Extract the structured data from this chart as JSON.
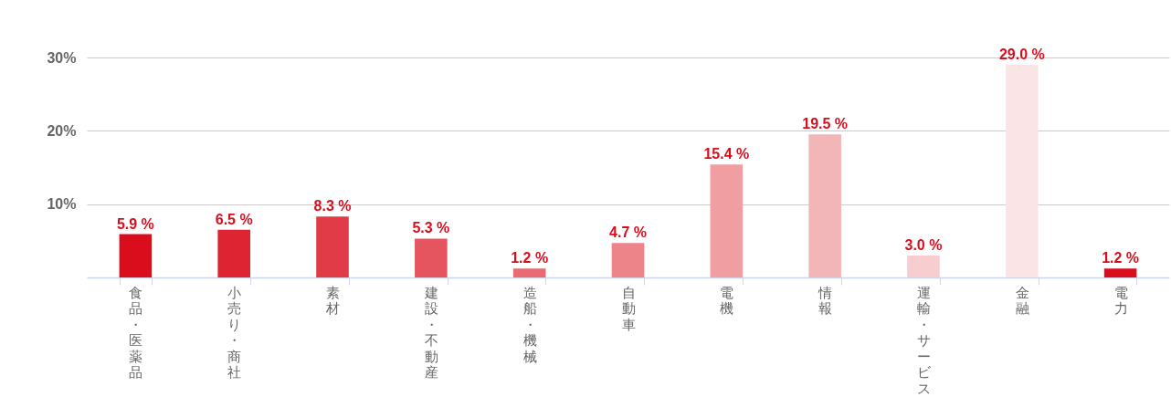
{
  "chart_data": {
    "type": "bar",
    "categories": [
      "食品・医薬品",
      "小売り・商社",
      "素材",
      "建設・不動産",
      "造船・機械",
      "自動車",
      "電機",
      "情報",
      "運輸・サービス",
      "金融",
      "電力"
    ],
    "values": [
      5.9,
      6.5,
      8.3,
      5.3,
      1.2,
      4.7,
      15.4,
      19.5,
      3.0,
      29.0,
      1.2
    ],
    "colors": [
      "#d90d1c",
      "#de2432",
      "#e13b48",
      "#e5555f",
      "#e86a72",
      "#ec848a",
      "#f09ea2",
      "#f3b6b8",
      "#f7cdcf",
      "#fbe4e5",
      "#d90d1c"
    ],
    "value_labels": [
      "5.9 %",
      "6.5 %",
      "8.3 %",
      "5.3 %",
      "1.2 %",
      "4.7 %",
      "15.4 %",
      "19.5 %",
      "3.0 %",
      "29.0 %",
      "1.2 %"
    ],
    "ylim": [
      0,
      30
    ],
    "yticks": [
      {
        "value": 10,
        "label": "10%"
      },
      {
        "value": 20,
        "label": "20%"
      },
      {
        "value": 30,
        "label": "30%"
      }
    ],
    "grid": "y"
  }
}
